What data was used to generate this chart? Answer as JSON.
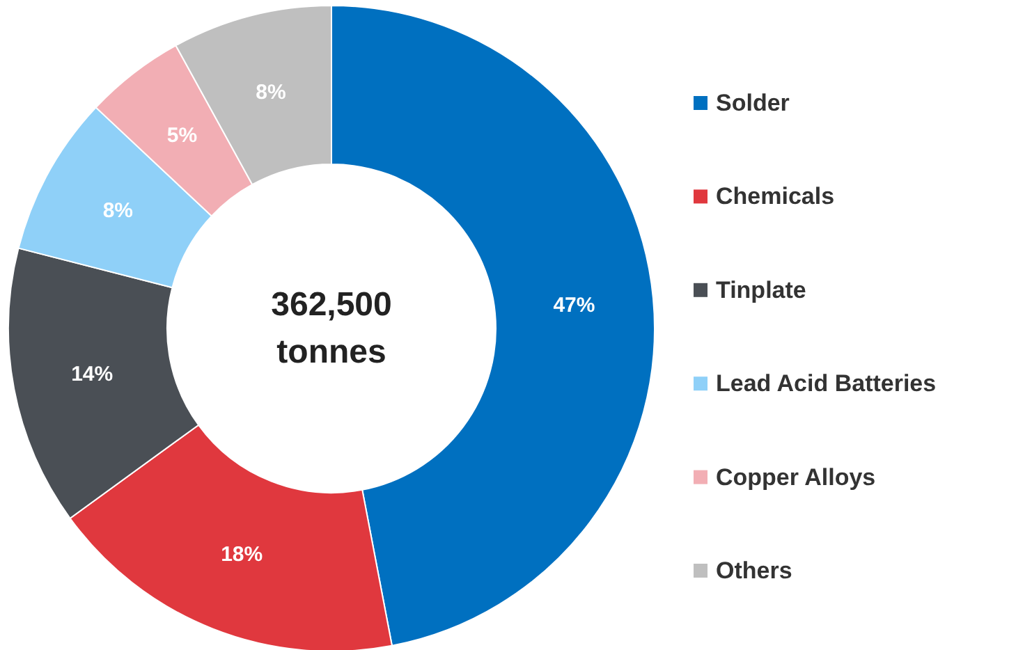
{
  "chart_data": {
    "type": "donut",
    "categories": [
      "Solder",
      "Chemicals",
      "Tinplate",
      "Lead Acid Batteries",
      "Copper Alloys",
      "Others"
    ],
    "values": [
      47,
      18,
      14,
      8,
      5,
      8
    ],
    "colors": [
      "#0070c0",
      "#e0383e",
      "#4a4f55",
      "#8fd0f8",
      "#f2aeb4",
      "#bfbfbf"
    ],
    "value_labels": [
      "47%",
      "18%",
      "14%",
      "8%",
      "5%",
      "8%"
    ],
    "annotations": [
      "362,500 tonnes"
    ],
    "legend": "right"
  }
}
